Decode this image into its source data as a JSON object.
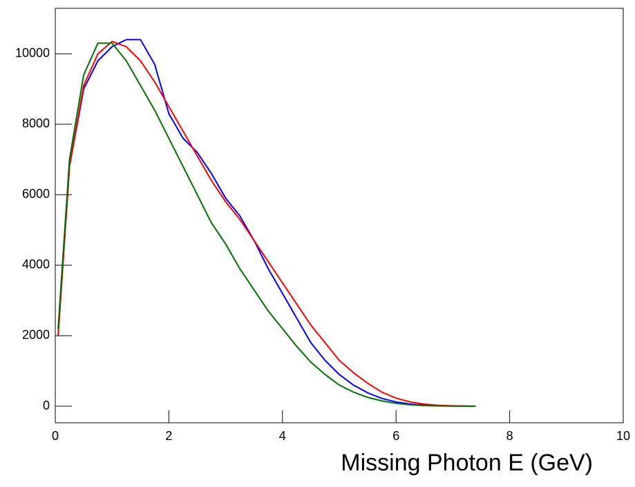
{
  "chart_data": {
    "type": "line",
    "xlabel": "Missing Photon E (GeV)",
    "x": [
      0.05,
      0.25,
      0.5,
      0.75,
      1.0,
      1.25,
      1.5,
      1.75,
      2.0,
      2.25,
      2.5,
      2.75,
      3.0,
      3.25,
      3.5,
      3.75,
      4.0,
      4.25,
      4.5,
      4.75,
      5.0,
      5.25,
      5.5,
      5.75,
      6.0,
      6.25,
      6.5,
      6.75,
      7.0,
      7.25,
      7.4
    ],
    "series": [
      {
        "color": "#0000ff",
        "values": [
          2000,
          6800,
          9000,
          9800,
          10200,
          10400,
          10400,
          9700,
          8300,
          7600,
          7200,
          6600,
          5900,
          5400,
          4700,
          3900,
          3200,
          2500,
          1800,
          1300,
          900,
          600,
          380,
          220,
          120,
          60,
          30,
          12,
          5,
          2,
          0
        ]
      },
      {
        "color": "#ff0000",
        "values": [
          2000,
          6800,
          9100,
          10000,
          10350,
          10200,
          9800,
          9200,
          8500,
          7800,
          7100,
          6400,
          5800,
          5300,
          4700,
          4100,
          3500,
          2900,
          2300,
          1800,
          1300,
          950,
          650,
          400,
          230,
          120,
          60,
          25,
          10,
          3,
          0
        ]
      },
      {
        "color": "#007000",
        "values": [
          2200,
          7000,
          9400,
          10300,
          10300,
          9800,
          9100,
          8400,
          7600,
          6800,
          6000,
          5200,
          4600,
          3900,
          3300,
          2700,
          2200,
          1700,
          1250,
          900,
          600,
          400,
          250,
          150,
          80,
          40,
          18,
          7,
          3,
          1,
          0
        ]
      }
    ],
    "xlim": [
      0,
      10
    ],
    "xticks": [
      0,
      2,
      4,
      6,
      8,
      10
    ],
    "ylim": [
      -470,
      11290
    ],
    "yticks": [
      0,
      2000,
      4000,
      6000,
      8000,
      10000
    ]
  }
}
